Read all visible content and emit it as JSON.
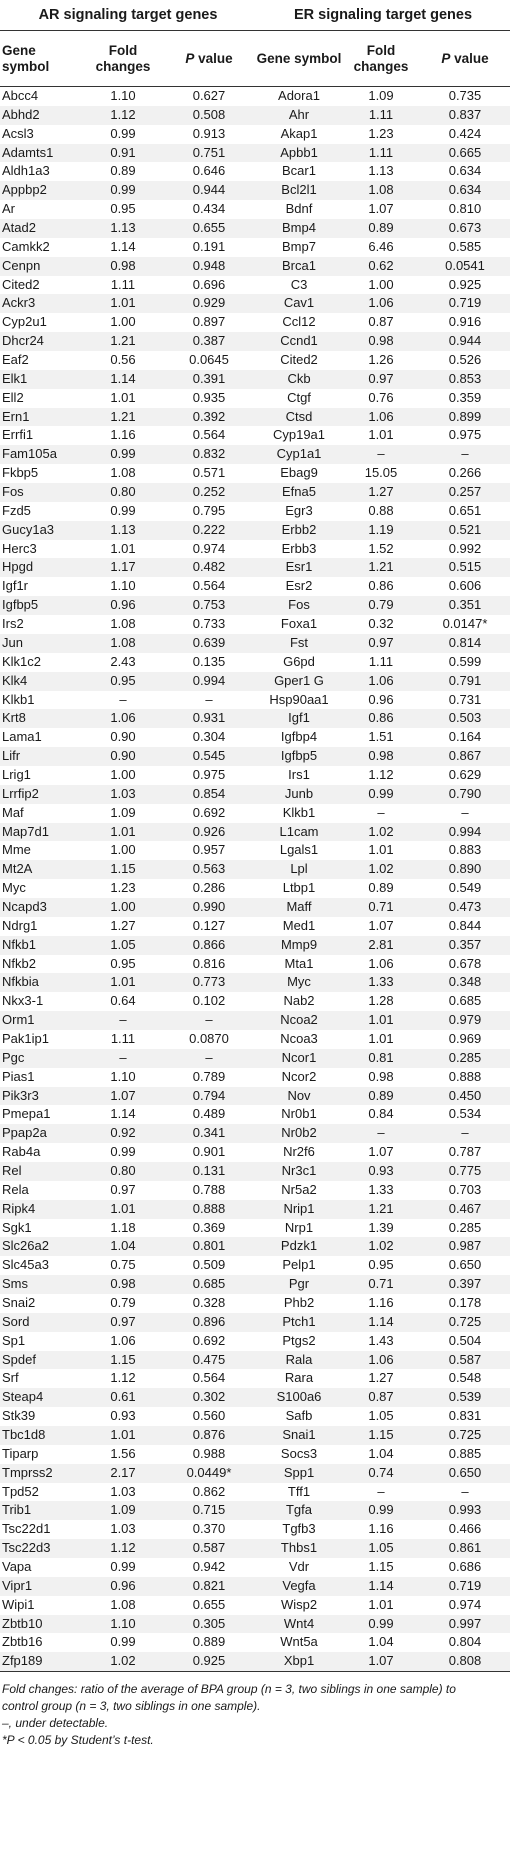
{
  "groups": [
    "AR signaling target genes",
    "ER signaling target genes"
  ],
  "columns": {
    "gene": "Gene symbol",
    "fold": "Fold changes",
    "p": "P value"
  },
  "rows": [
    [
      "Abcc4",
      "1.10",
      "0.627",
      "Adora1",
      "1.09",
      "0.735"
    ],
    [
      "Abhd2",
      "1.12",
      "0.508",
      "Ahr",
      "1.11",
      "0.837"
    ],
    [
      "Acsl3",
      "0.99",
      "0.913",
      "Akap1",
      "1.23",
      "0.424"
    ],
    [
      "Adamts1",
      "0.91",
      "0.751",
      "Apbb1",
      "1.11",
      "0.665"
    ],
    [
      "Aldh1a3",
      "0.89",
      "0.646",
      "Bcar1",
      "1.13",
      "0.634"
    ],
    [
      "Appbp2",
      "0.99",
      "0.944",
      "Bcl2l1",
      "1.08",
      "0.634"
    ],
    [
      "Ar",
      "0.95",
      "0.434",
      "Bdnf",
      "1.07",
      "0.810"
    ],
    [
      "Atad2",
      "1.13",
      "0.655",
      "Bmp4",
      "0.89",
      "0.673"
    ],
    [
      "Camkk2",
      "1.14",
      "0.191",
      "Bmp7",
      "6.46",
      "0.585"
    ],
    [
      "Cenpn",
      "0.98",
      "0.948",
      "Brca1",
      "0.62",
      "0.0541"
    ],
    [
      "Cited2",
      "1.11",
      "0.696",
      "C3",
      "1.00",
      "0.925"
    ],
    [
      "Ackr3",
      "1.01",
      "0.929",
      "Cav1",
      "1.06",
      "0.719"
    ],
    [
      "Cyp2u1",
      "1.00",
      "0.897",
      "Ccl12",
      "0.87",
      "0.916"
    ],
    [
      "Dhcr24",
      "1.21",
      "0.387",
      "Ccnd1",
      "0.98",
      "0.944"
    ],
    [
      "Eaf2",
      "0.56",
      "0.0645",
      "Cited2",
      "1.26",
      "0.526"
    ],
    [
      "Elk1",
      "1.14",
      "0.391",
      "Ckb",
      "0.97",
      "0.853"
    ],
    [
      "Ell2",
      "1.01",
      "0.935",
      "Ctgf",
      "0.76",
      "0.359"
    ],
    [
      "Ern1",
      "1.21",
      "0.392",
      "Ctsd",
      "1.06",
      "0.899"
    ],
    [
      "Errfi1",
      "1.16",
      "0.564",
      "Cyp19a1",
      "1.01",
      "0.975"
    ],
    [
      "Fam105a",
      "0.99",
      "0.832",
      "Cyp1a1",
      "–",
      "–"
    ],
    [
      "Fkbp5",
      "1.08",
      "0.571",
      "Ebag9",
      "15.05",
      "0.266"
    ],
    [
      "Fos",
      "0.80",
      "0.252",
      "Efna5",
      "1.27",
      "0.257"
    ],
    [
      "Fzd5",
      "0.99",
      "0.795",
      "Egr3",
      "0.88",
      "0.651"
    ],
    [
      "Gucy1a3",
      "1.13",
      "0.222",
      "Erbb2",
      "1.19",
      "0.521"
    ],
    [
      "Herc3",
      "1.01",
      "0.974",
      "Erbb3",
      "1.52",
      "0.992"
    ],
    [
      "Hpgd",
      "1.17",
      "0.482",
      "Esr1",
      "1.21",
      "0.515"
    ],
    [
      "Igf1r",
      "1.10",
      "0.564",
      "Esr2",
      "0.86",
      "0.606"
    ],
    [
      "Igfbp5",
      "0.96",
      "0.753",
      "Fos",
      "0.79",
      "0.351"
    ],
    [
      "Irs2",
      "1.08",
      "0.733",
      "Foxa1",
      "0.32",
      "0.0147*"
    ],
    [
      "Jun",
      "1.08",
      "0.639",
      "Fst",
      "0.97",
      "0.814"
    ],
    [
      "Klk1c2",
      "2.43",
      "0.135",
      "G6pd",
      "1.11",
      "0.599"
    ],
    [
      "Klk4",
      "0.95",
      "0.994",
      "Gper1 G",
      "1.06",
      "0.791"
    ],
    [
      "Klkb1",
      "–",
      "–",
      "Hsp90aa1",
      "0.96",
      "0.731"
    ],
    [
      "Krt8",
      "1.06",
      "0.931",
      "Igf1",
      "0.86",
      "0.503"
    ],
    [
      "Lama1",
      "0.90",
      "0.304",
      "Igfbp4",
      "1.51",
      "0.164"
    ],
    [
      "Lifr",
      "0.90",
      "0.545",
      "Igfbp5",
      "0.98",
      "0.867"
    ],
    [
      "Lrig1",
      "1.00",
      "0.975",
      "Irs1",
      "1.12",
      "0.629"
    ],
    [
      "Lrrfip2",
      "1.03",
      "0.854",
      "Junb",
      "0.99",
      "0.790"
    ],
    [
      "Maf",
      "1.09",
      "0.692",
      "Klkb1",
      "–",
      "–"
    ],
    [
      "Map7d1",
      "1.01",
      "0.926",
      "L1cam",
      "1.02",
      "0.994"
    ],
    [
      "Mme",
      "1.00",
      "0.957",
      "Lgals1",
      "1.01",
      "0.883"
    ],
    [
      "Mt2A",
      "1.15",
      "0.563",
      "Lpl",
      "1.02",
      "0.890"
    ],
    [
      "Myc",
      "1.23",
      "0.286",
      "Ltbp1",
      "0.89",
      "0.549"
    ],
    [
      "Ncapd3",
      "1.00",
      "0.990",
      "Maff",
      "0.71",
      "0.473"
    ],
    [
      "Ndrg1",
      "1.27",
      "0.127",
      "Med1",
      "1.07",
      "0.844"
    ],
    [
      "Nfkb1",
      "1.05",
      "0.866",
      "Mmp9",
      "2.81",
      "0.357"
    ],
    [
      "Nfkb2",
      "0.95",
      "0.816",
      "Mta1",
      "1.06",
      "0.678"
    ],
    [
      "Nfkbia",
      "1.01",
      "0.773",
      "Myc",
      "1.33",
      "0.348"
    ],
    [
      "Nkx3-1",
      "0.64",
      "0.102",
      "Nab2",
      "1.28",
      "0.685"
    ],
    [
      "Orm1",
      "–",
      "–",
      "Ncoa2",
      "1.01",
      "0.979"
    ],
    [
      "Pak1ip1",
      "1.11",
      "0.0870",
      "Ncoa3",
      "1.01",
      "0.969"
    ],
    [
      "Pgc",
      "–",
      "–",
      "Ncor1",
      "0.81",
      "0.285"
    ],
    [
      "Pias1",
      "1.10",
      "0.789",
      "Ncor2",
      "0.98",
      "0.888"
    ],
    [
      "Pik3r3",
      "1.07",
      "0.794",
      "Nov",
      "0.89",
      "0.450"
    ],
    [
      "Pmepa1",
      "1.14",
      "0.489",
      "Nr0b1",
      "0.84",
      "0.534"
    ],
    [
      "Ppap2a",
      "0.92",
      "0.341",
      "Nr0b2",
      "–",
      "–"
    ],
    [
      "Rab4a",
      "0.99",
      "0.901",
      "Nr2f6",
      "1.07",
      "0.787"
    ],
    [
      "Rel",
      "0.80",
      "0.131",
      "Nr3c1",
      "0.93",
      "0.775"
    ],
    [
      "Rela",
      "0.97",
      "0.788",
      "Nr5a2",
      "1.33",
      "0.703"
    ],
    [
      "Ripk4",
      "1.01",
      "0.888",
      "Nrip1",
      "1.21",
      "0.467"
    ],
    [
      "Sgk1",
      "1.18",
      "0.369",
      "Nrp1",
      "1.39",
      "0.285"
    ],
    [
      "Slc26a2",
      "1.04",
      "0.801",
      "Pdzk1",
      "1.02",
      "0.987"
    ],
    [
      "Slc45a3",
      "0.75",
      "0.509",
      "Pelp1",
      "0.95",
      "0.650"
    ],
    [
      "Sms",
      "0.98",
      "0.685",
      "Pgr",
      "0.71",
      "0.397"
    ],
    [
      "Snai2",
      "0.79",
      "0.328",
      "Phb2",
      "1.16",
      "0.178"
    ],
    [
      "Sord",
      "0.97",
      "0.896",
      "Ptch1",
      "1.14",
      "0.725"
    ],
    [
      "Sp1",
      "1.06",
      "0.692",
      "Ptgs2",
      "1.43",
      "0.504"
    ],
    [
      "Spdef",
      "1.15",
      "0.475",
      "Rala",
      "1.06",
      "0.587"
    ],
    [
      "Srf",
      "1.12",
      "0.564",
      "Rara",
      "1.27",
      "0.548"
    ],
    [
      "Steap4",
      "0.61",
      "0.302",
      "S100a6",
      "0.87",
      "0.539"
    ],
    [
      "Stk39",
      "0.93",
      "0.560",
      "Safb",
      "1.05",
      "0.831"
    ],
    [
      "Tbc1d8",
      "1.01",
      "0.876",
      "Snai1",
      "1.15",
      "0.725"
    ],
    [
      "Tiparp",
      "1.56",
      "0.988",
      "Socs3",
      "1.04",
      "0.885"
    ],
    [
      "Tmprss2",
      "2.17",
      "0.0449*",
      "Spp1",
      "0.74",
      "0.650"
    ],
    [
      "Tpd52",
      "1.03",
      "0.862",
      "Tff1",
      "–",
      "–"
    ],
    [
      "Trib1",
      "1.09",
      "0.715",
      "Tgfa",
      "0.99",
      "0.993"
    ],
    [
      "Tsc22d1",
      "1.03",
      "0.370",
      "Tgfb3",
      "1.16",
      "0.466"
    ],
    [
      "Tsc22d3",
      "1.12",
      "0.587",
      "Thbs1",
      "1.05",
      "0.861"
    ],
    [
      "Vapa",
      "0.99",
      "0.942",
      "Vdr",
      "1.15",
      "0.686"
    ],
    [
      "Vipr1",
      "0.96",
      "0.821",
      "Vegfa",
      "1.14",
      "0.719"
    ],
    [
      "Wipi1",
      "1.08",
      "0.655",
      "Wisp2",
      "1.01",
      "0.974"
    ],
    [
      "Zbtb10",
      "1.10",
      "0.305",
      "Wnt4",
      "0.99",
      "0.997"
    ],
    [
      "Zbtb16",
      "0.99",
      "0.889",
      "Wnt5a",
      "1.04",
      "0.804"
    ],
    [
      "Zfp189",
      "1.02",
      "0.925",
      "Xbp1",
      "1.07",
      "0.808"
    ]
  ],
  "notes": [
    "Fold changes: ratio of the average of BPA group (n = 3, two siblings in one sample) to",
    "control group (n = 3, two siblings in one sample).",
    "–, under detectable.",
    "*P < 0.05 by Student’s t-test."
  ]
}
